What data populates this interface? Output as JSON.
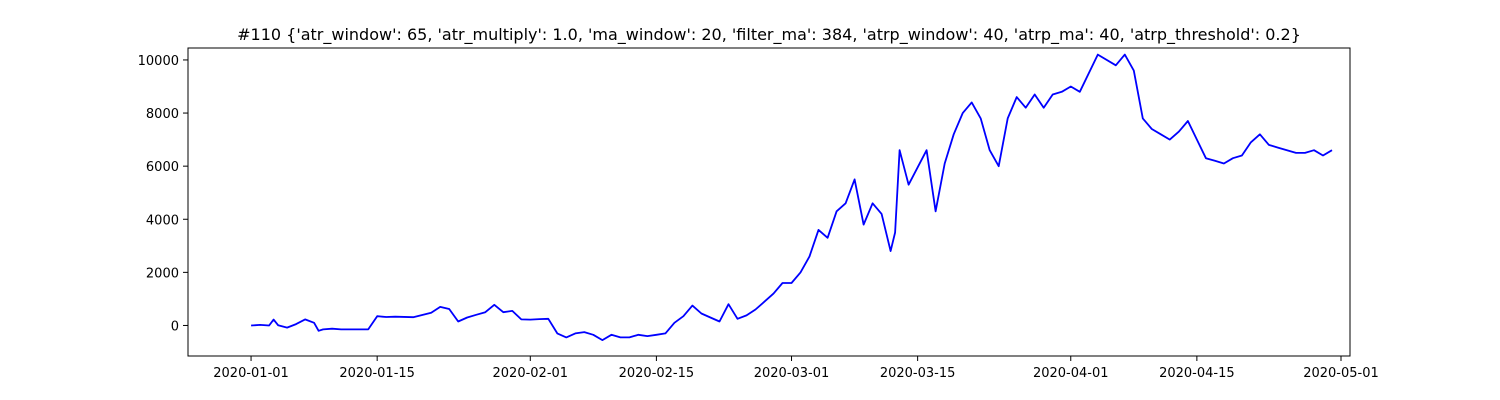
{
  "chart_data": {
    "type": "line",
    "title": "#110 {'atr_window': 65, 'atr_multiply': 1.0, 'ma_window': 20, 'filter_ma': 384, 'atrp_window': 40, 'atrp_ma': 40, 'atrp_threshold': 0.2}",
    "xlabel": "",
    "ylabel": "",
    "x_axis_type": "date",
    "xlim": [
      "2019-12-25",
      "2020-05-02"
    ],
    "ylim": [
      -1150,
      10450
    ],
    "x_ticks": [
      "2020-01-01",
      "2020-01-15",
      "2020-02-01",
      "2020-02-15",
      "2020-03-01",
      "2020-03-15",
      "2020-04-01",
      "2020-04-15",
      "2020-05-01"
    ],
    "y_ticks": [
      0,
      2000,
      4000,
      6000,
      8000,
      10000
    ],
    "grid": false,
    "line_color": "#0000ff",
    "series": [
      {
        "x": [
          "2020-01-01",
          "2020-01-02",
          "2020-01-03",
          "2020-01-03T12:00",
          "2020-01-04",
          "2020-01-05",
          "2020-01-06",
          "2020-01-07",
          "2020-01-08",
          "2020-01-08T12:00",
          "2020-01-09",
          "2020-01-10",
          "2020-01-11",
          "2020-01-12",
          "2020-01-14",
          "2020-01-15",
          "2020-01-16",
          "2020-01-17",
          "2020-01-19",
          "2020-01-21",
          "2020-01-22",
          "2020-01-23",
          "2020-01-24",
          "2020-01-25",
          "2020-01-26",
          "2020-01-27",
          "2020-01-28",
          "2020-01-29",
          "2020-01-30",
          "2020-01-31",
          "2020-02-01",
          "2020-02-02",
          "2020-02-03",
          "2020-02-04",
          "2020-02-05",
          "2020-02-06",
          "2020-02-07",
          "2020-02-08",
          "2020-02-09",
          "2020-02-10",
          "2020-02-11",
          "2020-02-12",
          "2020-02-13",
          "2020-02-14",
          "2020-02-15",
          "2020-02-16",
          "2020-02-17",
          "2020-02-18",
          "2020-02-19",
          "2020-02-20",
          "2020-02-21",
          "2020-02-22",
          "2020-02-23",
          "2020-02-24",
          "2020-02-25",
          "2020-02-26",
          "2020-02-27",
          "2020-02-28",
          "2020-02-29",
          "2020-03-01",
          "2020-03-02",
          "2020-03-03",
          "2020-03-04",
          "2020-03-05",
          "2020-03-06",
          "2020-03-07",
          "2020-03-08",
          "2020-03-09",
          "2020-03-10",
          "2020-03-11",
          "2020-03-12",
          "2020-03-12T12:00",
          "2020-03-13",
          "2020-03-14",
          "2020-03-16",
          "2020-03-17",
          "2020-03-18",
          "2020-03-19",
          "2020-03-20",
          "2020-03-21",
          "2020-03-22",
          "2020-03-23",
          "2020-03-24",
          "2020-03-25",
          "2020-03-26",
          "2020-03-27",
          "2020-03-28",
          "2020-03-29",
          "2020-03-30",
          "2020-03-31",
          "2020-04-01",
          "2020-04-02",
          "2020-04-04",
          "2020-04-06",
          "2020-04-07",
          "2020-04-08",
          "2020-04-09",
          "2020-04-10",
          "2020-04-11",
          "2020-04-12",
          "2020-04-13",
          "2020-04-14",
          "2020-04-15",
          "2020-04-16",
          "2020-04-17",
          "2020-04-18",
          "2020-04-19",
          "2020-04-20",
          "2020-04-21",
          "2020-04-22",
          "2020-04-23",
          "2020-04-24",
          "2020-04-26",
          "2020-04-27",
          "2020-04-28",
          "2020-04-29",
          "2020-04-30"
        ],
        "y": [
          0,
          20,
          0,
          220,
          10,
          -80,
          50,
          230,
          100,
          -200,
          -150,
          -120,
          -150,
          -150,
          -150,
          350,
          320,
          330,
          310,
          480,
          700,
          620,
          150,
          300,
          400,
          500,
          780,
          500,
          550,
          230,
          220,
          240,
          250,
          -300,
          -450,
          -300,
          -250,
          -350,
          -550,
          -350,
          -450,
          -450,
          -350,
          -400,
          -350,
          -300,
          100,
          350,
          750,
          450,
          300,
          150,
          800,
          250,
          380,
          600,
          900,
          1200,
          1600,
          1600,
          2000,
          2600,
          3600,
          3300,
          4300,
          4600,
          5500,
          3800,
          4600,
          4200,
          2800,
          3500,
          6600,
          5300,
          6600,
          4300,
          6100,
          7200,
          8000,
          8400,
          7800,
          6600,
          6000,
          7800,
          8600,
          8200,
          8700,
          8200,
          8700,
          8800,
          9000,
          8800,
          10200,
          9800,
          10200,
          9600,
          7800,
          7400,
          7200,
          7000,
          7300,
          7700,
          7000,
          6300,
          6200,
          6100,
          6300,
          6400,
          6900,
          7200,
          6800,
          6700,
          6500,
          6500,
          6600,
          6400,
          6600
        ]
      }
    ]
  }
}
